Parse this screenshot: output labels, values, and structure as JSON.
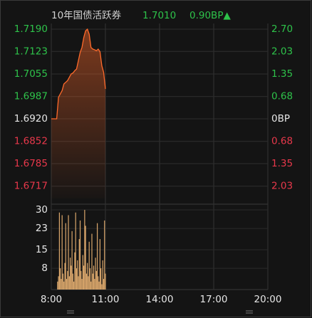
{
  "chart_data": [
    {
      "type": "line",
      "title": "10年国债活跃券",
      "annotations": [
        {
          "text": "1.7010"
        },
        {
          "text": "0.90BP▲"
        }
      ],
      "x": [
        8.0,
        8.1,
        8.2,
        8.3,
        8.4,
        8.5,
        8.6,
        8.7,
        8.8,
        8.9,
        9.0,
        9.1,
        9.2,
        9.3,
        9.4,
        9.5,
        9.6,
        9.7,
        9.8,
        9.9,
        10.0,
        10.1,
        10.2,
        10.3,
        10.4,
        10.5,
        10.6,
        10.7,
        10.8,
        10.9,
        11.0
      ],
      "values": [
        1.692,
        1.692,
        1.692,
        1.692,
        1.6985,
        1.6995,
        1.7005,
        1.7025,
        1.703,
        1.7035,
        1.7045,
        1.7055,
        1.7058,
        1.7065,
        1.707,
        1.7095,
        1.712,
        1.7135,
        1.7165,
        1.7185,
        1.719,
        1.7175,
        1.7135,
        1.713,
        1.7128,
        1.7125,
        1.713,
        1.7122,
        1.708,
        1.706,
        1.701
      ],
      "color": "#ff6a2b",
      "xlim": [
        8,
        20
      ],
      "ylim": [
        1.668,
        1.719
      ],
      "yticks": [
        {
          "value": 1.719,
          "label": "1.7190"
        },
        1.7123,
        1.7055,
        1.6987,
        {
          "value": 1.692,
          "label": "1.6920"
        },
        1.6852,
        1.6785,
        1.6717
      ],
      "y2lim": [
        -2.4,
        2.7
      ],
      "y2ticks": [
        {
          "value": 2.7,
          "label": "2.70"
        },
        2.03,
        1.35,
        0.68,
        {
          "value": 0,
          "label": "0BP"
        },
        {
          "value": -0.68,
          "label": "0.68"
        },
        {
          "value": -1.35,
          "label": "1.35"
        },
        {
          "value": -2.03,
          "label": "2.03"
        }
      ],
      "grid": true,
      "up_color": "#2ec24a",
      "down_color": "#e8384b",
      "flat_color": "#e6e6e6"
    },
    {
      "type": "bar",
      "x": [
        8.35,
        8.4,
        8.45,
        8.5,
        8.55,
        8.6,
        8.65,
        8.7,
        8.75,
        8.8,
        8.85,
        8.9,
        8.95,
        9.0,
        9.05,
        9.1,
        9.15,
        9.2,
        9.25,
        9.3,
        9.35,
        9.4,
        9.45,
        9.5,
        9.55,
        9.6,
        9.65,
        9.7,
        9.75,
        9.8,
        9.85,
        9.9,
        9.95,
        10.0,
        10.05,
        10.1,
        10.15,
        10.2,
        10.25,
        10.3,
        10.35,
        10.4,
        10.45,
        10.5,
        10.55,
        10.6,
        10.65,
        10.7,
        10.75,
        10.8,
        10.85,
        10.9,
        10.95,
        11.0
      ],
      "values": [
        3,
        5,
        29,
        8,
        4,
        28,
        6,
        3,
        10,
        25,
        4,
        7,
        28,
        5,
        12,
        9,
        22,
        6,
        3,
        14,
        29,
        8,
        11,
        5,
        19,
        26,
        7,
        4,
        13,
        9,
        30,
        24,
        6,
        10,
        5,
        18,
        8,
        3,
        21,
        6,
        9,
        4,
        12,
        7,
        25,
        5,
        3,
        19,
        8,
        2,
        11,
        4,
        26,
        6
      ],
      "color": "#d9a66b",
      "xlim": [
        8,
        20
      ],
      "xticks": [
        {
          "value": 8,
          "label": "8:00"
        },
        {
          "value": 11,
          "label": "11:00"
        },
        {
          "value": 14,
          "label": "14:00"
        },
        {
          "value": 17,
          "label": "17:00"
        },
        {
          "value": 20,
          "label": "20:00"
        }
      ],
      "ylim": [
        0,
        30
      ],
      "yticks": [
        30,
        23,
        15,
        8
      ],
      "grid": true
    }
  ]
}
